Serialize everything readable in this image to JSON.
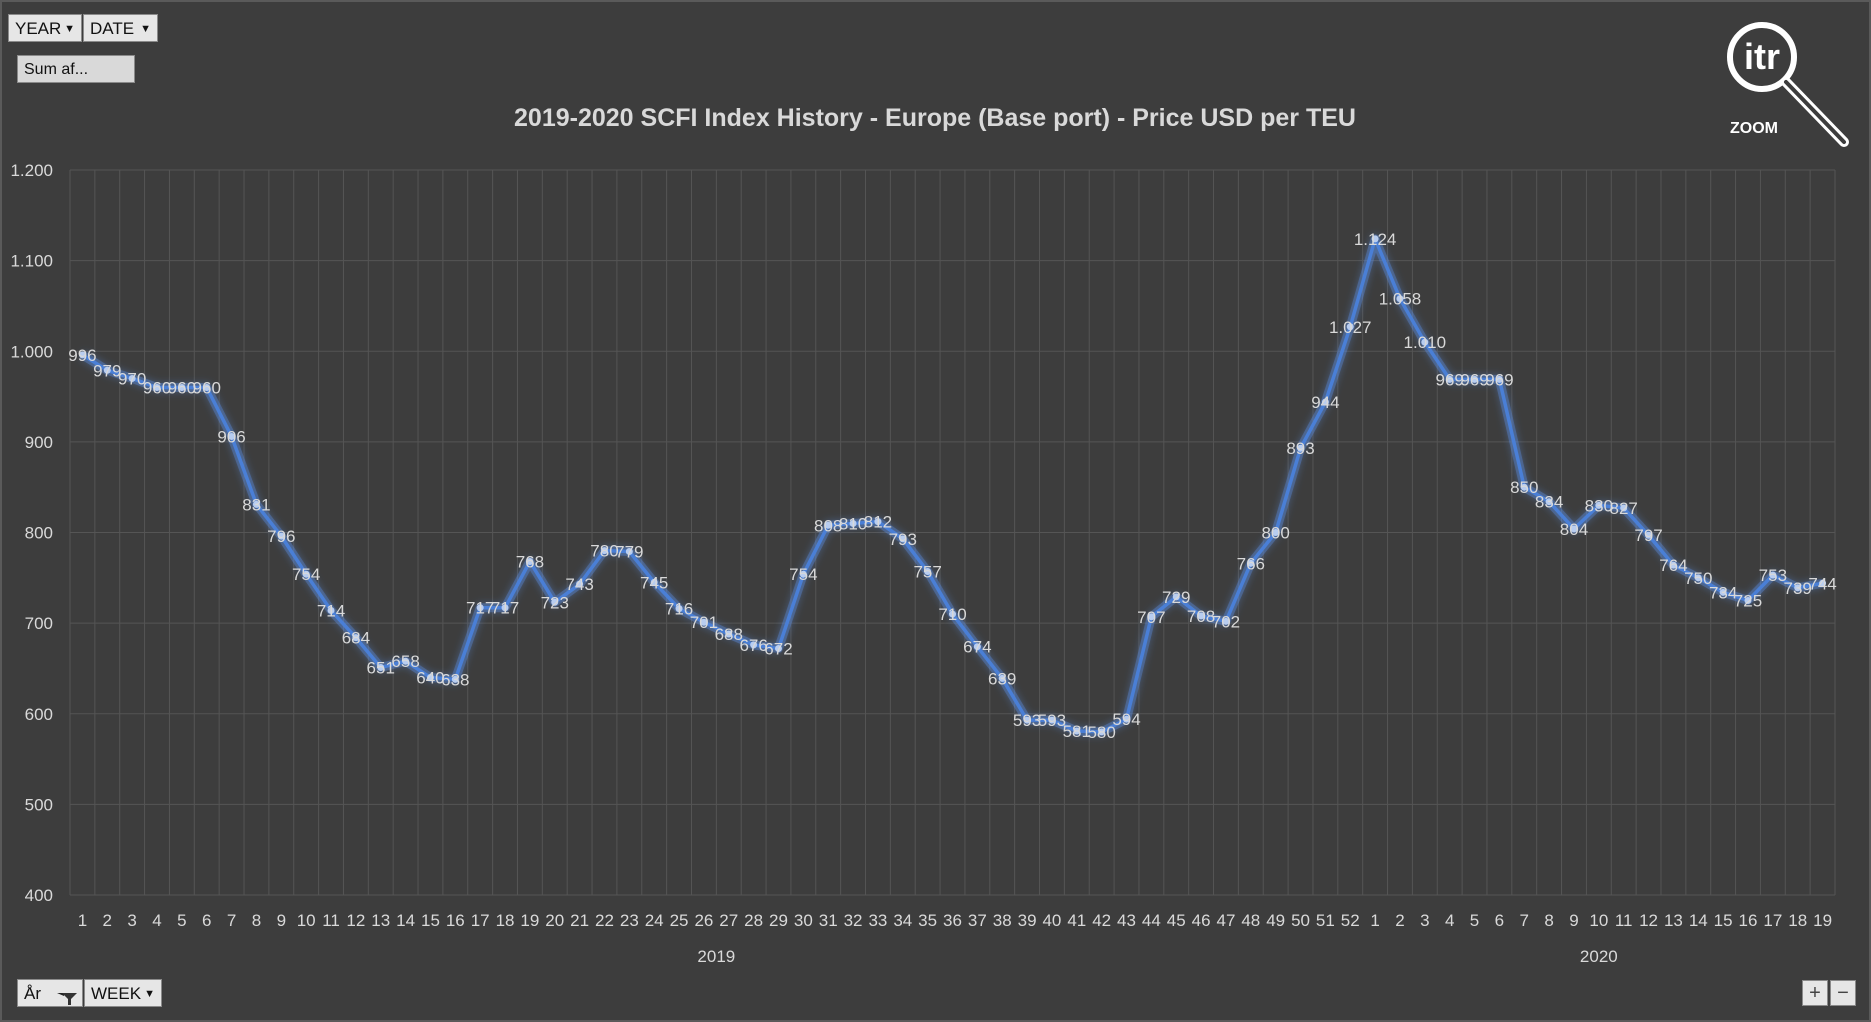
{
  "filters": {
    "year_label": "YEAR",
    "date_label": "DATE",
    "sum_label": "Sum af...",
    "ar_label": "År",
    "week_label": "WEEK"
  },
  "logo": {
    "text": "itr",
    "caption": "ZOOM"
  },
  "zoom": {
    "plus": "+",
    "minus": "−"
  },
  "colors": {
    "line": "#4a7fd6",
    "glow": "#5b8fe8",
    "grid": "#555555",
    "text": "#d9d9d9",
    "background": "#3d3d3d"
  },
  "chart_data": {
    "type": "line",
    "title": "2019-2020 SCFI Index History - Europe (Base port) - Price USD per TEU",
    "ylim": [
      400,
      1200
    ],
    "yticks": [
      "400",
      "500",
      "600",
      "700",
      "800",
      "900",
      "1.000",
      "1.100",
      "1.200"
    ],
    "grid": true,
    "groups": [
      {
        "name": "2019",
        "weeks": [
          "1",
          "2",
          "3",
          "4",
          "5",
          "6",
          "7",
          "8",
          "9",
          "10",
          "11",
          "12",
          "13",
          "14",
          "15",
          "16",
          "17",
          "18",
          "19",
          "20",
          "21",
          "22",
          "23",
          "24",
          "25",
          "26",
          "27",
          "28",
          "29",
          "30",
          "31",
          "32",
          "33",
          "34",
          "35",
          "36",
          "37",
          "38",
          "39",
          "40",
          "41",
          "42",
          "43",
          "44",
          "45",
          "46",
          "47",
          "48",
          "49",
          "50",
          "51",
          "52"
        ]
      },
      {
        "name": "2020",
        "weeks": [
          "1",
          "2",
          "3",
          "4",
          "5",
          "6",
          "7",
          "8",
          "9",
          "10",
          "11",
          "12",
          "13",
          "14",
          "15",
          "16",
          "17",
          "18",
          "19"
        ]
      }
    ],
    "series": [
      {
        "values": [
          996,
          979,
          970,
          960,
          960,
          960,
          906,
          831,
          796,
          754,
          714,
          684,
          651,
          658,
          640,
          638,
          717,
          717,
          768,
          723,
          743,
          780,
          779,
          745,
          716,
          701,
          688,
          676,
          672,
          754,
          808,
          810,
          812,
          793,
          757,
          710,
          674,
          639,
          593,
          593,
          581,
          580,
          594,
          707,
          729,
          708,
          702,
          766,
          800,
          893,
          944,
          1027,
          1124,
          1058,
          1010,
          969,
          969,
          969,
          850,
          834,
          804,
          830,
          827,
          797,
          764,
          750,
          734,
          725,
          753,
          739,
          744
        ],
        "labels": [
          "996",
          "979",
          "970",
          "960",
          "960",
          "960",
          "906",
          "831",
          "796",
          "754",
          "714",
          "684",
          "651",
          "658",
          "640",
          "638",
          "717",
          "717",
          "768",
          "723",
          "743",
          "780",
          "779",
          "745",
          "716",
          "701",
          "688",
          "676",
          "672",
          "754",
          "808",
          "810",
          "812",
          "793",
          "757",
          "710",
          "674",
          "639",
          "593",
          "593",
          "581",
          "580",
          "594",
          "707",
          "729",
          "708",
          "702",
          "766",
          "800",
          "893",
          "944",
          "1.027",
          "1.124",
          "1.058",
          "1.010",
          "969",
          "969",
          "969",
          "850",
          "834",
          "804",
          "830",
          "827",
          "797",
          "764",
          "750",
          "734",
          "725",
          "753",
          "739",
          "744"
        ]
      }
    ]
  }
}
